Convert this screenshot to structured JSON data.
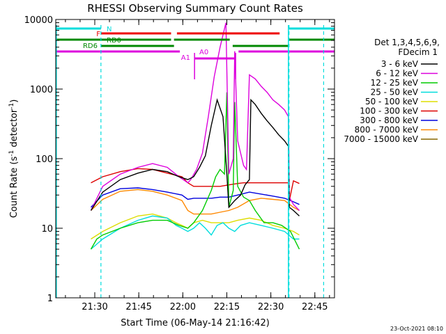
{
  "chart_data": {
    "type": "line",
    "title": "RHESSI Observing Summary Count Rates",
    "xlabel": "Start Time (06-May-14 21:16:42)",
    "ylabel_main": "Count Rate (s",
    "ylabel_sup1": "-1",
    "ylabel_mid": " detector",
    "ylabel_sup2": "-1",
    "ylabel_end": ")",
    "x_unit": "minutes since 21:16:42",
    "x_range": [
      0,
      95
    ],
    "y_scale": "log",
    "ylim": [
      1,
      10000
    ],
    "x_ticks": [
      {
        "label": "21:30",
        "value": 13.3
      },
      {
        "label": "21:45",
        "value": 28.3
      },
      {
        "label": "22:00",
        "value": 43.3
      },
      {
        "label": "22:15",
        "value": 58.3
      },
      {
        "label": "22:30",
        "value": 73.3
      },
      {
        "label": "22:45",
        "value": 88.3
      }
    ],
    "y_ticks": [
      {
        "label": "1",
        "value": 1
      },
      {
        "label": "10",
        "value": 10
      },
      {
        "label": "100",
        "value": 100
      },
      {
        "label": "1000",
        "value": 1000
      },
      {
        "label": "10000",
        "value": 10000
      }
    ],
    "legend_header": [
      "Det 1,3,4,5,6,9,",
      "FDecim 1"
    ],
    "legend_placement": "right",
    "timestamp": "23-Oct-2021 08:10",
    "series": [
      {
        "name": "3 - 6 keV",
        "color": "#000000",
        "x": [
          12,
          16,
          22,
          28,
          33,
          38,
          42,
          45,
          47,
          49,
          51,
          53,
          55,
          57,
          58.3,
          59,
          61,
          63,
          64.5,
          66,
          66.5,
          68,
          70,
          72,
          74,
          76,
          78,
          79.3,
          79.6,
          81,
          83
        ],
        "y": [
          18,
          33,
          50,
          62,
          70,
          65,
          55,
          50,
          55,
          75,
          110,
          300,
          700,
          400,
          60,
          20,
          25,
          30,
          42,
          50,
          700,
          600,
          450,
          350,
          280,
          220,
          180,
          150,
          20,
          18,
          15
        ]
      },
      {
        "name": "6 - 12 keV",
        "color": "#dd00dd",
        "x": [
          12,
          16,
          22,
          28,
          33,
          38,
          42,
          45,
          46,
          48,
          50,
          52,
          54,
          56,
          58,
          59,
          60.5,
          61,
          62,
          63,
          64,
          65,
          66,
          68,
          70,
          72,
          74,
          76,
          78,
          79.3,
          79.6,
          81,
          83
        ],
        "y": [
          18,
          40,
          60,
          75,
          85,
          75,
          55,
          45,
          50,
          70,
          120,
          400,
          1500,
          4000,
          9000,
          60,
          100,
          3500,
          180,
          120,
          80,
          70,
          1600,
          1400,
          1100,
          900,
          700,
          600,
          500,
          400,
          28,
          22,
          18
        ]
      },
      {
        "name": "12 - 25 keV",
        "color": "#00cc00",
        "x": [
          12,
          14,
          16,
          22,
          28,
          33,
          38,
          42,
          45,
          47,
          50,
          53,
          54.5,
          56,
          57.5,
          58.3,
          59,
          60.5,
          61,
          62,
          64,
          66,
          68,
          71,
          74,
          77,
          80,
          83
        ],
        "y": [
          5,
          7,
          8,
          10,
          12,
          13,
          13,
          11,
          10,
          12,
          18,
          35,
          55,
          70,
          60,
          900,
          20,
          35,
          650,
          40,
          28,
          25,
          18,
          12,
          12,
          11,
          9,
          5
        ]
      },
      {
        "name": "25 - 50 keV",
        "color": "#00dddd",
        "x": [
          12,
          16,
          22,
          28,
          33,
          38,
          41,
          43,
          45,
          47,
          49,
          51,
          53,
          55,
          57,
          59,
          61,
          63,
          66,
          70,
          74,
          78,
          81,
          83
        ],
        "y": [
          5,
          7,
          10,
          13,
          15,
          14,
          11,
          10,
          9,
          10,
          12,
          10,
          8,
          11,
          12,
          10,
          9,
          11,
          12,
          11,
          10,
          9,
          7,
          7
        ]
      },
      {
        "name": "50 - 100 keV",
        "color": "#dddd00",
        "x": [
          12,
          16,
          22,
          28,
          33,
          38,
          41,
          43,
          45,
          47,
          50,
          53,
          56,
          59,
          62,
          66,
          70,
          74,
          78,
          81,
          83
        ],
        "y": [
          7,
          9,
          12,
          15,
          16,
          14,
          12,
          11,
          10,
          12,
          13,
          12,
          12,
          12,
          13,
          14,
          13,
          11,
          10,
          9,
          8
        ]
      },
      {
        "name": "100 - 300 keV",
        "color": "#dd0000",
        "x": [
          12,
          16,
          22,
          28,
          33,
          38,
          43,
          45,
          47,
          50,
          53,
          56,
          59,
          62,
          64,
          66,
          70,
          74,
          78,
          79.3,
          79.6,
          81,
          83
        ],
        "y": [
          45,
          55,
          65,
          72,
          70,
          62,
          55,
          45,
          40,
          40,
          40,
          40,
          42,
          44,
          45,
          45,
          45,
          45,
          45,
          45,
          25,
          48,
          44
        ]
      },
      {
        "name": "300 - 800 keV",
        "color": "#0000dd",
        "x": [
          12,
          16,
          22,
          28,
          33,
          38,
          43,
          45,
          47,
          50,
          53,
          56,
          59,
          62,
          66,
          70,
          74,
          78,
          81,
          83
        ],
        "y": [
          20,
          30,
          37,
          38,
          36,
          33,
          30,
          26,
          27,
          27,
          27,
          28,
          28,
          30,
          33,
          31,
          29,
          27,
          24,
          22
        ]
      },
      {
        "name": "800 - 7000 keV",
        "color": "#ff8800",
        "x": [
          12,
          16,
          22,
          28,
          33,
          38,
          43,
          45,
          47,
          50,
          53,
          56,
          59,
          62,
          66,
          70,
          74,
          78,
          81,
          83
        ],
        "y": [
          18,
          26,
          34,
          36,
          34,
          30,
          25,
          18,
          16,
          16,
          16,
          17,
          18,
          20,
          25,
          27,
          26,
          25,
          20,
          18
        ]
      },
      {
        "name": "7000 - 15000 keV",
        "color": "#886600",
        "x": [],
        "y": []
      }
    ],
    "attenuator_bars": [
      {
        "label": "N",
        "color": "#00dddd",
        "row": 0,
        "segments": [
          [
            0,
            15.4
          ],
          [
            79.5,
            95
          ]
        ]
      },
      {
        "label": "F",
        "color": "#ee0000",
        "row": 1,
        "segments": [
          [
            15.4,
            39.3
          ],
          [
            41.3,
            76.3
          ]
        ]
      },
      {
        "label": "RD0",
        "color": "#008800",
        "row": 2,
        "segments": [
          [
            0,
            39.3
          ],
          [
            40.3,
            59.3
          ],
          [
            79.5,
            95
          ]
        ]
      },
      {
        "label": "RD6",
        "color": "#008800",
        "row": 3,
        "segments": [
          [
            15.4,
            40.3
          ],
          [
            60.3,
            79.3
          ]
        ]
      },
      {
        "label": "A0",
        "color": "#dd00dd",
        "row": 5,
        "segments": [
          [
            47.3,
            61.3
          ]
        ]
      },
      {
        "label": "A1",
        "color": "#dd00dd",
        "row": 4,
        "segments": [
          [
            0,
            42.3
          ],
          [
            62.3,
            95
          ]
        ]
      }
    ],
    "dashed_markers": [
      {
        "x": 15.4,
        "color": "#00dddd"
      },
      {
        "x": 79.5,
        "color": "#00dddd"
      },
      {
        "x": 91.3,
        "color": "#00dddd"
      }
    ],
    "solid_markers": [
      {
        "x": 0.2,
        "color": "#00dddd"
      },
      {
        "x": 79.3,
        "color": "#00dddd"
      }
    ]
  }
}
